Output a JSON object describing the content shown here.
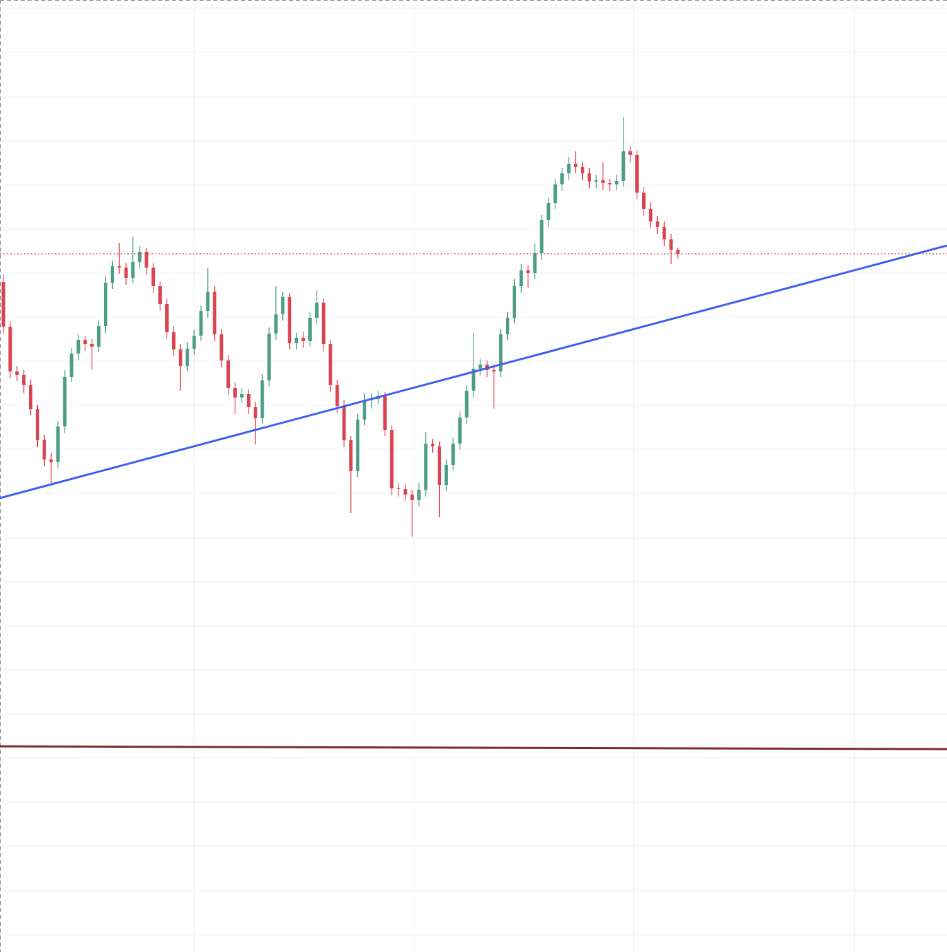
{
  "chart_data": {
    "type": "candlestick",
    "open": [
      974,
      909,
      844,
      839,
      824,
      789,
      744,
      716,
      712,
      764,
      836,
      870,
      890,
      884,
      880,
      910,
      973,
      997,
      995,
      980,
      1003,
      1018,
      995,
      968,
      942,
      901,
      876,
      852,
      877,
      896,
      932,
      960,
      898,
      860,
      820,
      806,
      811,
      792,
      776,
      831,
      899,
      927,
      952,
      885,
      893,
      888,
      922,
      944,
      884,
      824,
      794,
      744,
      699,
      774,
      802,
      804,
      808,
      759,
      674,
      673,
      665,
      657,
      672,
      739,
      735,
      679,
      708,
      739,
      777,
      816,
      848,
      854,
      846,
      844,
      898,
      922,
      968,
      991,
      987,
      1016,
      1064,
      1089,
      1116,
      1132,
      1146,
      1141,
      1132,
      1120,
      1122,
      1118,
      1116,
      1121,
      1164,
      1159,
      1104,
      1080,
      1062,
      1054,
      1036,
      1021
    ],
    "high": [
      984,
      917,
      852,
      846,
      832,
      795,
      752,
      726,
      772,
      846,
      878,
      898,
      896,
      891,
      918,
      982,
      1005,
      1031,
      1002,
      1040,
      1026,
      1024,
      1002,
      975,
      950,
      910,
      884,
      886,
      904,
      940,
      994,
      968,
      906,
      868,
      828,
      820,
      818,
      800,
      840,
      908,
      968,
      960,
      958,
      900,
      902,
      930,
      962,
      950,
      890,
      832,
      802,
      750,
      782,
      812,
      812,
      816,
      814,
      766,
      682,
      680,
      672,
      682,
      756,
      746,
      742,
      716,
      748,
      785,
      824,
      900,
      862,
      860,
      854,
      906,
      930,
      978,
      1000,
      998,
      1030,
      1072,
      1096,
      1124,
      1140,
      1156,
      1164,
      1148,
      1140,
      1130,
      1148,
      1124,
      1130,
      1214,
      1172,
      1166,
      1112,
      1090,
      1070,
      1062,
      1044,
      1024
    ],
    "low": [
      899,
      834,
      830,
      812,
      780,
      734,
      706,
      682,
      704,
      754,
      828,
      860,
      874,
      846,
      872,
      900,
      964,
      986,
      970,
      972,
      994,
      985,
      958,
      932,
      892,
      866,
      816,
      844,
      868,
      888,
      922,
      888,
      850,
      810,
      782,
      798,
      782,
      738,
      768,
      822,
      890,
      918,
      876,
      876,
      878,
      880,
      912,
      874,
      814,
      784,
      734,
      638,
      690,
      766,
      790,
      796,
      750,
      664,
      662,
      656,
      604,
      648,
      662,
      726,
      632,
      670,
      700,
      730,
      768,
      806,
      838,
      836,
      790,
      836,
      890,
      914,
      958,
      966,
      978,
      1006,
      1054,
      1080,
      1106,
      1122,
      1132,
      1122,
      1110,
      1110,
      1108,
      1106,
      1108,
      1112,
      1148,
      1094,
      1070,
      1052,
      1044,
      1026,
      1000,
      1008
    ],
    "close": [
      909,
      844,
      839,
      824,
      789,
      744,
      716,
      712,
      764,
      836,
      870,
      890,
      884,
      880,
      910,
      973,
      997,
      995,
      980,
      1003,
      1018,
      995,
      968,
      942,
      901,
      876,
      852,
      877,
      896,
      932,
      960,
      898,
      860,
      820,
      806,
      811,
      792,
      776,
      831,
      899,
      927,
      952,
      885,
      893,
      888,
      922,
      944,
      884,
      824,
      794,
      744,
      699,
      774,
      802,
      804,
      808,
      759,
      674,
      673,
      665,
      657,
      672,
      739,
      735,
      679,
      708,
      739,
      777,
      816,
      848,
      854,
      846,
      844,
      898,
      922,
      968,
      991,
      987,
      1016,
      1064,
      1089,
      1116,
      1132,
      1146,
      1141,
      1132,
      1120,
      1122,
      1118,
      1116,
      1121,
      1164,
      1159,
      1104,
      1080,
      1062,
      1054,
      1036,
      1021,
      1015
    ],
    "up_color": "#4c9d86",
    "down_color": "#d84550",
    "xlim": [
      -0.5,
      138.5
    ],
    "ylim": [
      0,
      1384
    ],
    "xticks": [
      28,
      60.3,
      92.5,
      124.9
    ],
    "yticks": [
      25,
      89,
      154,
      218,
      282,
      346,
      410,
      474,
      538,
      602,
      667,
      731,
      795,
      859,
      923,
      987,
      1051,
      1115,
      1179,
      1243,
      1308,
      1372
    ],
    "grid": true,
    "lines": [
      {
        "color": "#3d5ef0",
        "x": [
          -0.5,
          138.5
        ],
        "y": [
          660,
          1027
        ]
      },
      {
        "color": "#7b2a2a",
        "x": [
          -0.5,
          138.5
        ],
        "y": [
          299,
          295
        ]
      }
    ],
    "price_line": {
      "value": 1015,
      "color": "#d84550"
    }
  }
}
